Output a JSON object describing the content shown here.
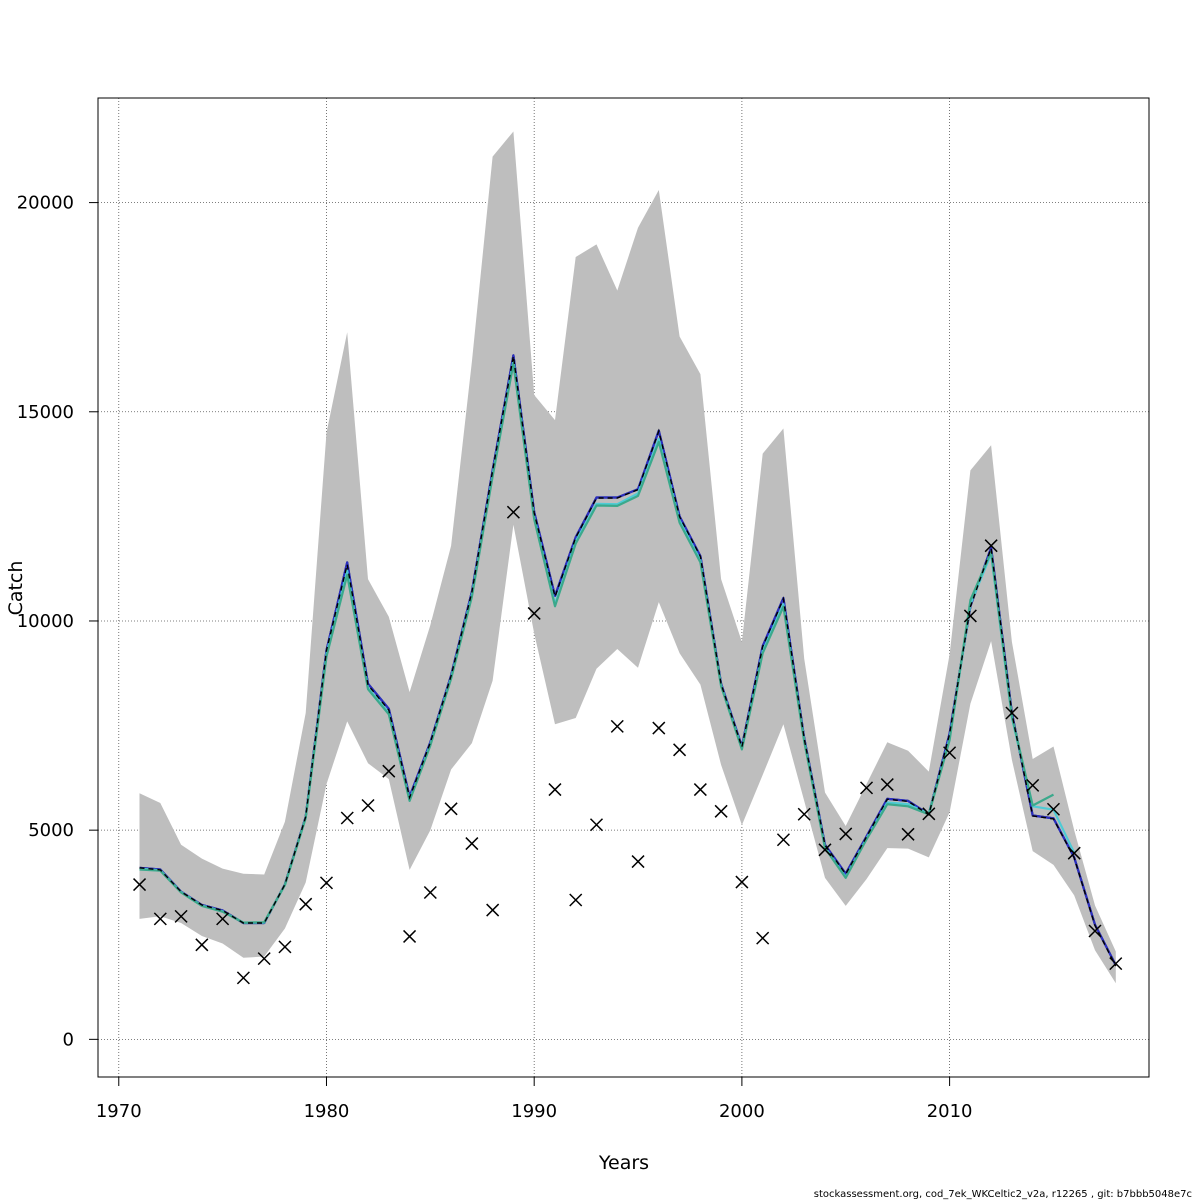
{
  "chart_data": {
    "type": "line",
    "title": "",
    "xlabel": "Years",
    "ylabel": "Catch",
    "xlim": [
      1969,
      2019.6
    ],
    "ylim": [
      -900,
      22500
    ],
    "xticks": [
      1970,
      1980,
      1990,
      2000,
      2010
    ],
    "yticks": [
      0,
      5000,
      10000,
      15000,
      20000
    ],
    "grid": true,
    "legend": "none",
    "years": [
      1971,
      1972,
      1973,
      1974,
      1975,
      1976,
      1977,
      1978,
      1979,
      1980,
      1981,
      1982,
      1983,
      1984,
      1985,
      1986,
      1987,
      1988,
      1989,
      1990,
      1991,
      1992,
      1993,
      1994,
      1995,
      1996,
      1997,
      1998,
      1999,
      2000,
      2001,
      2002,
      2003,
      2004,
      2005,
      2006,
      2007,
      2008,
      2009,
      2010,
      2011,
      2012,
      2013,
      2014,
      2015,
      2016,
      2017,
      2018
    ],
    "confidence_band": {
      "color": "#bebebe",
      "upper": [
        5880,
        5650,
        4650,
        4320,
        4080,
        3960,
        3940,
        5200,
        7800,
        14500,
        16900,
        11000,
        10100,
        8300,
        9900,
        11800,
        16200,
        21100,
        21700,
        15400,
        14800,
        18700,
        19000,
        17900,
        19400,
        20300,
        16800,
        15900,
        11000,
        9500,
        14000,
        14600,
        9100,
        5900,
        5100,
        6100,
        7100,
        6900,
        6400,
        9200,
        13600,
        14200,
        9500,
        6700,
        7000,
        5000,
        3200,
        2100
      ],
      "lower": [
        2880,
        2940,
        2780,
        2470,
        2290,
        1950,
        1980,
        2650,
        3750,
        6100,
        7600,
        6600,
        6220,
        4050,
        5000,
        6450,
        7080,
        8570,
        12300,
        9700,
        7530,
        7680,
        8860,
        9330,
        8880,
        10450,
        9230,
        8480,
        6560,
        5120,
        6320,
        7530,
        5700,
        3860,
        3190,
        3830,
        4570,
        4560,
        4350,
        5430,
        8020,
        9520,
        6680,
        4500,
        4170,
        3440,
        2130,
        1340
      ]
    },
    "series": [
      {
        "color": "#27235f",
        "values": [
          4100,
          4060,
          3530,
          3210,
          3080,
          2780,
          2780,
          3700,
          5320,
          9300,
          11400,
          8500,
          7900,
          5800,
          7100,
          8700,
          10700,
          13600,
          16350,
          12600,
          10600,
          12000,
          12950,
          12950,
          13150,
          14550,
          12500,
          11550,
          8500,
          7000,
          9400,
          10550,
          7200,
          4650,
          3960,
          4850,
          5750,
          5700,
          5380,
          7310,
          10350,
          11750,
          7800,
          5350,
          5280,
          4350,
          2740,
          1770
        ]
      },
      {
        "color": "#2a2ec0",
        "values": [
          4100,
          4060,
          3530,
          3210,
          3080,
          2780,
          2780,
          3700,
          5320,
          9300,
          11400,
          8500,
          7900,
          5800,
          7100,
          8700,
          10700,
          13600,
          16350,
          12600,
          10600,
          12000,
          12950,
          12950,
          13150,
          14550,
          12500,
          11550,
          8500,
          7000,
          9400,
          10550,
          7200,
          4650,
          3960,
          4850,
          5750,
          5700,
          5380,
          7310,
          10350,
          11750,
          7800,
          5350,
          5280,
          4350,
          2740,
          1770
        ]
      },
      {
        "color": "#4ecbd5",
        "values": [
          4080,
          4040,
          3520,
          3200,
          3060,
          2790,
          2790,
          3690,
          5300,
          9220,
          11200,
          8400,
          7800,
          5720,
          7050,
          8650,
          10630,
          13500,
          16220,
          12480,
          10400,
          11900,
          12800,
          12790,
          13050,
          14350,
          12400,
          11450,
          8460,
          6960,
          9280,
          10400,
          7150,
          4590,
          3880,
          4800,
          5660,
          5620,
          5390,
          7200,
          10400,
          11600,
          7680,
          5570,
          5490,
          4460
        ]
      },
      {
        "color": "#3ba98c",
        "values": [
          4060,
          4030,
          3510,
          3190,
          3050,
          2790,
          2800,
          3690,
          5290,
          9150,
          11100,
          8370,
          7770,
          5700,
          7020,
          8620,
          10580,
          13450,
          16150,
          12430,
          10350,
          11850,
          12760,
          12750,
          12990,
          14280,
          12350,
          11400,
          8440,
          6930,
          9230,
          10340,
          7120,
          4570,
          3860,
          4780,
          5620,
          5570,
          5380,
          7150,
          10500,
          11650,
          7720,
          5590,
          5850
        ]
      }
    ],
    "fit_dashed": {
      "color": "#000000",
      "values": [
        4100,
        4050,
        3530,
        3210,
        3080,
        2780,
        2780,
        3700,
        5320,
        9300,
        11350,
        8470,
        7870,
        5780,
        7090,
        8690,
        10690,
        13590,
        16330,
        12580,
        10580,
        11990,
        12940,
        12940,
        13140,
        14540,
        12490,
        11540,
        8490,
        6990,
        9390,
        10530,
        7190,
        4640,
        3950,
        4840,
        5740,
        5690,
        5370,
        7300,
        10340,
        11740,
        7790,
        5340,
        5270,
        4340,
        2720,
        1750
      ]
    },
    "observed": {
      "marker": "x",
      "values": [
        3700,
        2880,
        2940,
        2260,
        2880,
        1470,
        1930,
        2210,
        3230,
        3740,
        5290,
        5590,
        6410,
        2460,
        3510,
        5510,
        4680,
        3090,
        12600,
        10180,
        5970,
        3330,
        5130,
        7480,
        4250,
        7440,
        6920,
        5970,
        5450,
        3760,
        2420,
        4770,
        5380,
        4530,
        4910,
        6010,
        6090,
        4900,
        5390,
        6850,
        10120,
        11800,
        7800,
        6070,
        5500,
        4450,
        2590,
        1810
      ]
    }
  },
  "footer": "stockassessment.org, cod_7ek_WKCeltic2_v2a, r12265 , git: b7bbb5048e7c"
}
